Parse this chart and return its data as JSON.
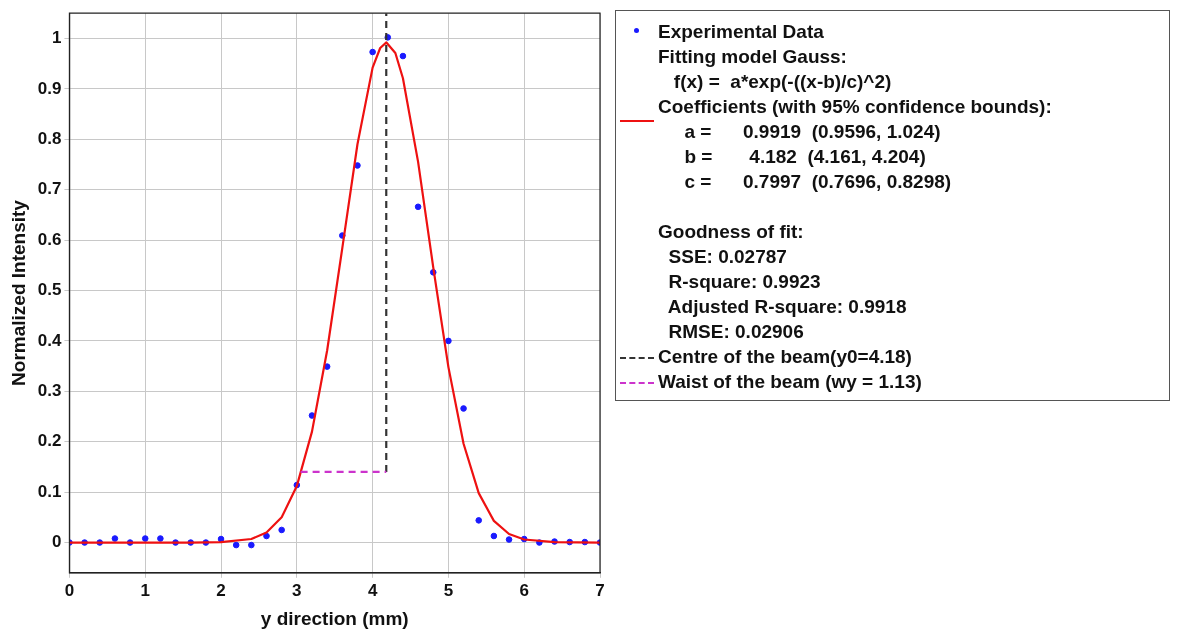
{
  "chart_data": {
    "type": "scatter",
    "xlabel": "y direction (mm)",
    "ylabel": "Normalized Intensity",
    "xlim": [
      0,
      7
    ],
    "xticks": [
      0,
      1,
      2,
      3,
      4,
      5,
      6,
      7
    ],
    "ylim": [
      -0.06,
      1.05
    ],
    "yticks": [
      0,
      0.1,
      0.2,
      0.3,
      0.4,
      0.5,
      0.6,
      0.7,
      0.8,
      0.9,
      1
    ],
    "grid": true,
    "legend": "right",
    "series": [
      {
        "name": "Experimental Data",
        "color": "#1a1aff",
        "marker": "circle",
        "x": [
          0,
          0.2,
          0.4,
          0.6,
          0.8,
          1,
          1.2,
          1.4,
          1.6,
          1.8,
          2,
          2.2,
          2.4,
          2.6,
          2.8,
          3,
          3.2,
          3.4,
          3.6,
          3.8,
          4,
          4.2,
          4.4,
          4.6,
          4.8,
          5,
          5.2,
          5.4,
          5.6,
          5.8,
          6,
          6.2,
          6.4,
          6.6,
          6.8,
          7
        ],
        "values": [
          0,
          0,
          0,
          0.008,
          0,
          0.008,
          0.008,
          0,
          0,
          0,
          0.007,
          -0.005,
          -0.005,
          0.013,
          0.025,
          0.114,
          0.252,
          0.349,
          0.609,
          0.748,
          0.973,
          1.002,
          0.965,
          0.666,
          0.536,
          0.4,
          0.266,
          0.044,
          0.013,
          0.006,
          0.007,
          0,
          0.002,
          0.001,
          0.001,
          0
        ]
      },
      {
        "name": "Fitting model Gauss:\n   f(x) =  a*exp(-((x-b)/c)^2)\nCoefficients (with 95% confidence bounds):\n     a =      0.9919  (0.9596, 1.024)\n     b =       4.182  (4.161, 4.204)\n     c =      0.7997  (0.7696, 0.8298)",
        "type": "line",
        "color": "#ee1111",
        "marker": "none",
        "line_style": "solid",
        "x": [
          0,
          1.6,
          2,
          2.4,
          2.6,
          2.8,
          3,
          3.2,
          3.4,
          3.6,
          3.8,
          4,
          4.1,
          4.182,
          4.3,
          4.4,
          4.6,
          4.8,
          5,
          5.2,
          5.4,
          5.6,
          5.8,
          6,
          6.4,
          7
        ],
        "values": [
          0,
          0,
          0.001,
          0.007,
          0.02,
          0.05,
          0.112,
          0.22,
          0.381,
          0.584,
          0.79,
          0.942,
          0.981,
          0.992,
          0.971,
          0.921,
          0.755,
          0.546,
          0.348,
          0.196,
          0.098,
          0.043,
          0.017,
          0.006,
          0.001,
          0
        ]
      },
      {
        "name": "Centre of the beam(y0=4.18)",
        "type": "line",
        "color": "#333333",
        "marker": "none",
        "line_style": "dashed",
        "x": [
          4.18,
          4.18
        ],
        "values": [
          0.14,
          1.05
        ]
      },
      {
        "name": "Waist of the beam (wy = 1.13)",
        "type": "line",
        "color": "#cc33cc",
        "marker": "none",
        "line_style": "dashed",
        "x": [
          3.05,
          4.18
        ],
        "values": [
          0.14,
          0.14
        ]
      }
    ],
    "annotations": [
      "Goodness of fit:",
      "  SSE: 0.02787",
      "  R-square: 0.9923",
      "  Adjusted R-square: 0.9918",
      "  RMSE: 0.02906"
    ]
  }
}
